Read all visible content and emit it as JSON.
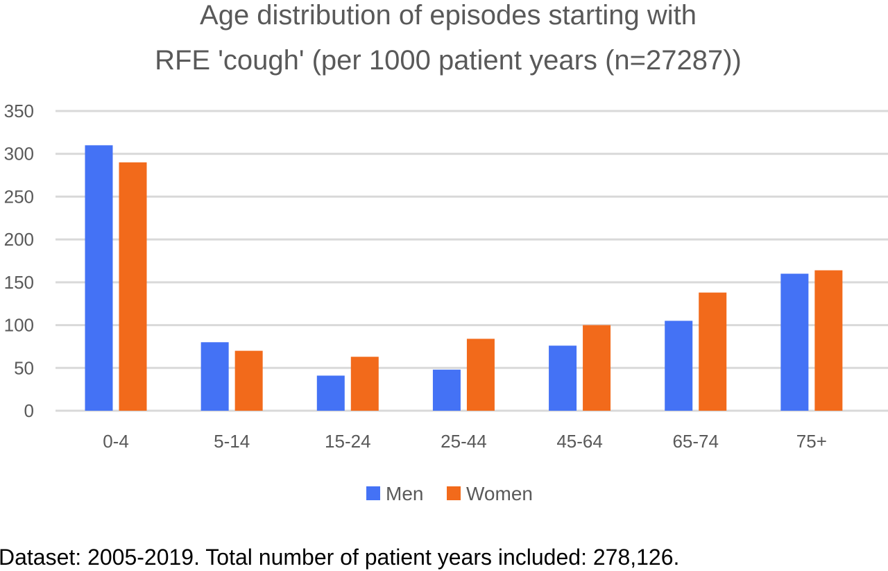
{
  "chart_data": {
    "type": "bar",
    "title_lines": [
      "Age distribution of episodes starting with",
      "RFE 'cough' (per 1000 patient years (n=27287))"
    ],
    "categories": [
      "0-4",
      "5-14",
      "15-24",
      "25-44",
      "45-64",
      "65-74",
      "75+"
    ],
    "series": [
      {
        "name": "Men",
        "color": "#4472f5",
        "values": [
          310,
          80,
          41,
          48,
          76,
          105,
          160
        ]
      },
      {
        "name": "Women",
        "color": "#f26a1b",
        "values": [
          290,
          70,
          63,
          84,
          100,
          138,
          164
        ]
      }
    ],
    "ylim": [
      0,
      350
    ],
    "yticks": [
      0,
      50,
      100,
      150,
      200,
      250,
      300,
      350
    ],
    "grid": true,
    "legend_position": "bottom"
  },
  "footnote": "Dataset: 2005-2019. Total number of patient years included: 278,126."
}
